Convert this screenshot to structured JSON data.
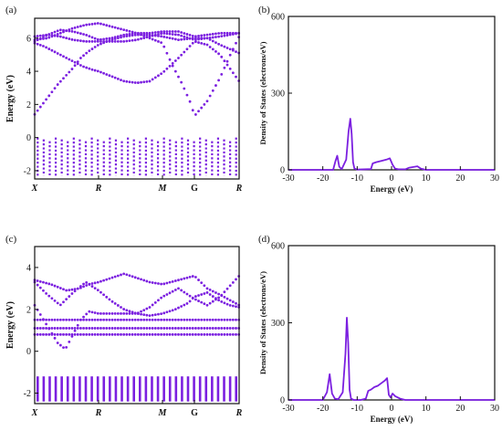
{
  "colors": {
    "series": "#7B1FE0",
    "axis": "#111111"
  },
  "panel_labels": [
    "(a)",
    "(b)",
    "(c)",
    "(d)"
  ],
  "chart_data": [
    {
      "id": "a",
      "type": "scatter",
      "ylabel": "Energy (eV)",
      "xlabel": "",
      "x_tick_labels": [
        "X",
        "R",
        "M",
        "G",
        "R"
      ],
      "x_tick_italic": [
        true,
        true,
        true,
        false,
        true
      ],
      "ylim": [
        -2.5,
        7.2
      ],
      "y_ticks": [
        -2,
        0,
        2,
        4,
        6
      ],
      "grid": false,
      "legend": "none",
      "description_of_series": "band structure dots",
      "conduction_bands": [
        {
          "name": "",
          "x": [
            0,
            0.12,
            0.24,
            0.36,
            0.48,
            0.6,
            0.72,
            0.84,
            1,
            1.2,
            1.4,
            1.6,
            1.8,
            2,
            2.25,
            2.5,
            2.7,
            2.9,
            3.2
          ],
          "y": [
            1.4,
            2.0,
            2.6,
            3.2,
            3.7,
            4.2,
            4.8,
            5.2,
            5.6,
            5.9,
            6.1,
            6.2,
            6.2,
            6.1,
            5.9,
            6.0,
            6.0,
            6.1,
            6.3
          ]
        },
        {
          "name": "",
          "x": [
            0,
            0.15,
            0.3,
            0.45,
            0.6,
            0.75,
            0.9,
            1,
            1.2,
            1.4,
            1.6,
            1.8,
            2,
            2.25,
            2.5,
            2.7,
            2.9,
            3.2
          ],
          "y": [
            5.7,
            5.5,
            5.2,
            4.9,
            4.6,
            4.3,
            4.1,
            4.0,
            3.7,
            3.4,
            3.3,
            3.4,
            3.9,
            4.8,
            5.8,
            5.6,
            5.0,
            3.4
          ]
        },
        {
          "name": "",
          "x": [
            0,
            0.2,
            0.4,
            0.6,
            0.8,
            1,
            1.2,
            1.4,
            1.6,
            1.8,
            2,
            2.15,
            2.3,
            2.45,
            2.5,
            2.7,
            2.9,
            3.05,
            3.2
          ],
          "y": [
            5.9,
            6.0,
            6.3,
            6.6,
            6.8,
            6.9,
            6.7,
            6.5,
            6.3,
            6.0,
            5.7,
            4.4,
            3.3,
            2.0,
            1.3,
            2.2,
            3.6,
            4.9,
            6.1
          ]
        },
        {
          "name": "",
          "x": [
            0,
            0.2,
            0.4,
            0.6,
            0.8,
            1,
            1.2,
            1.4,
            1.6,
            1.8,
            2,
            2.25,
            2.5,
            2.7,
            2.9,
            3.2
          ],
          "y": [
            6.1,
            6.2,
            6.1,
            5.9,
            5.8,
            5.8,
            5.8,
            5.8,
            5.9,
            6.1,
            6.3,
            6.2,
            5.9,
            6.0,
            5.6,
            5.1
          ]
        },
        {
          "name": "",
          "x": [
            0,
            0.2,
            0.4,
            0.6,
            0.8,
            1,
            1.2,
            1.4,
            1.6,
            1.8,
            2,
            2.25,
            2.5,
            2.7,
            2.9,
            3.2
          ],
          "y": [
            5.8,
            6.2,
            6.5,
            6.4,
            6.2,
            5.9,
            6.0,
            6.2,
            6.3,
            6.3,
            6.4,
            6.4,
            6.1,
            6.2,
            6.3,
            6.3
          ]
        }
      ],
      "valence_band": {
        "x_range": [
          0,
          3.2
        ],
        "y_top": 0,
        "y_bottom": -2.3
      }
    },
    {
      "id": "b",
      "type": "line",
      "xlabel": "Energy (eV)",
      "ylabel": "Density of States (electrons/eV)",
      "xlim": [
        -30,
        30
      ],
      "ylim": [
        0,
        600
      ],
      "x_ticks": [
        -30,
        -20,
        -10,
        0,
        10,
        20,
        30
      ],
      "y_ticks": [
        0,
        300,
        600
      ],
      "grid": false,
      "legend": "none",
      "series": [
        {
          "name": "",
          "x": [
            -30,
            -17,
            -16.3,
            -15.8,
            -15.2,
            -14.5,
            -13.2,
            -12.5,
            -12.0,
            -11.6,
            -11.2,
            -10.8,
            -10,
            -6,
            -5.5,
            -4.5,
            -3,
            -1.5,
            -0.5,
            0.3,
            1,
            2,
            4,
            5,
            7.5,
            8.5,
            10,
            30
          ],
          "y": [
            0,
            0,
            35,
            55,
            12,
            3,
            40,
            150,
            200,
            140,
            30,
            5,
            1,
            3,
            25,
            30,
            35,
            40,
            45,
            20,
            5,
            2,
            2,
            8,
            14,
            5,
            0,
            0
          ]
        }
      ]
    },
    {
      "id": "c",
      "type": "scatter",
      "ylabel": "Energy (eV)",
      "xlabel": "",
      "x_tick_labels": [
        "X",
        "R",
        "M",
        "G",
        "R"
      ],
      "x_tick_italic": [
        true,
        true,
        true,
        false,
        true
      ],
      "ylim": [
        -2.5,
        5.0
      ],
      "y_ticks": [
        -2,
        0,
        2,
        4
      ],
      "grid": false,
      "legend": "none",
      "description_of_series": "band structure dots",
      "conduction_bands": [
        {
          "name": "",
          "x": [
            0,
            0.25,
            0.5,
            0.7,
            0.85,
            1,
            1.2,
            1.4,
            1.6,
            1.8,
            2,
            2.25,
            2.5,
            2.7,
            2.9,
            3.2
          ],
          "y": [
            3.4,
            3.2,
            2.9,
            3.0,
            3.2,
            3.3,
            3.5,
            3.7,
            3.5,
            3.3,
            3.2,
            3.4,
            3.6,
            3.0,
            2.7,
            2.2
          ]
        },
        {
          "name": "",
          "x": [
            0,
            0.2,
            0.4,
            0.6,
            0.8,
            1,
            1.2,
            1.4,
            1.6,
            1.8,
            2,
            2.25,
            2.5,
            2.7,
            2.9,
            3.2
          ],
          "y": [
            3.3,
            2.7,
            2.2,
            2.8,
            3.3,
            2.9,
            2.4,
            2.0,
            1.8,
            2.1,
            2.6,
            3.0,
            2.5,
            2.2,
            2.6,
            3.6
          ]
        },
        {
          "name": "",
          "x": [
            0,
            0.12,
            0.24,
            0.36,
            0.48,
            0.6,
            0.72,
            0.85,
            1,
            1.2,
            1.4,
            1.6,
            1.8,
            2,
            2.2,
            2.4,
            2.5,
            2.7,
            2.9,
            3.05,
            3.2
          ],
          "y": [
            2.2,
            1.6,
            1.0,
            0.4,
            0.1,
            0.8,
            1.5,
            1.9,
            1.8,
            1.8,
            1.8,
            1.8,
            1.7,
            1.8,
            2.0,
            2.3,
            2.6,
            2.8,
            2.4,
            2.2,
            2.1
          ]
        },
        {
          "name": "",
          "x": [
            0,
            0.2,
            0.4,
            0.6,
            0.8,
            1,
            1.2,
            1.4,
            1.6,
            1.8,
            2,
            2.25,
            2.5,
            2.7,
            2.9,
            3.2
          ],
          "y": [
            1.5,
            1.5,
            1.5,
            1.5,
            1.5,
            1.5,
            1.5,
            1.5,
            1.5,
            1.5,
            1.5,
            1.5,
            1.5,
            1.5,
            1.5,
            1.5
          ]
        },
        {
          "name": "",
          "x": [
            0,
            0.2,
            0.4,
            0.6,
            0.8,
            1,
            1.2,
            1.4,
            1.6,
            1.8,
            2,
            2.25,
            2.5,
            2.7,
            2.9,
            3.2
          ],
          "y": [
            1.1,
            1.1,
            1.1,
            1.1,
            1.1,
            1.1,
            1.1,
            1.1,
            1.1,
            1.1,
            1.1,
            1.1,
            1.1,
            1.1,
            1.1,
            1.1
          ]
        },
        {
          "name": "",
          "x": [
            0,
            0.2,
            0.4,
            0.6,
            0.8,
            1,
            1.2,
            1.4,
            1.6,
            1.8,
            2,
            2.25,
            2.5,
            2.7,
            2.9,
            3.2
          ],
          "y": [
            0.8,
            0.8,
            0.8,
            0.8,
            0.8,
            0.8,
            0.8,
            0.8,
            0.8,
            0.8,
            0.8,
            0.8,
            0.8,
            0.8,
            0.8,
            0.8
          ]
        }
      ],
      "valence_band": {
        "x_range": [
          0,
          3.2
        ],
        "y_top": -1.2,
        "y_bottom": -2.4
      }
    },
    {
      "id": "d",
      "type": "line",
      "xlabel": "Energy (eV)",
      "ylabel": "Density of States (electrons/eV)",
      "xlim": [
        -30,
        30
      ],
      "ylim": [
        0,
        600
      ],
      "x_ticks": [
        -30,
        -20,
        -10,
        0,
        10,
        20,
        30
      ],
      "y_ticks": [
        0,
        300,
        600
      ],
      "grid": false,
      "legend": "none",
      "series": [
        {
          "name": "",
          "x": [
            -30,
            -20,
            -18.8,
            -18.0,
            -17.3,
            -16.5,
            -15.5,
            -14.2,
            -13.4,
            -13.0,
            -12.6,
            -12.2,
            -11.8,
            -11,
            -9,
            -7.5,
            -6.8,
            -6,
            -5,
            -4,
            -3,
            -2,
            -1.3,
            -0.8,
            -0.3,
            0.3,
            1,
            2.5,
            4,
            30
          ],
          "y": [
            0,
            0,
            30,
            100,
            25,
            5,
            3,
            30,
            180,
            320,
            220,
            40,
            5,
            0,
            0,
            5,
            35,
            40,
            50,
            55,
            65,
            75,
            85,
            20,
            10,
            25,
            15,
            5,
            0,
            0
          ]
        }
      ]
    }
  ]
}
